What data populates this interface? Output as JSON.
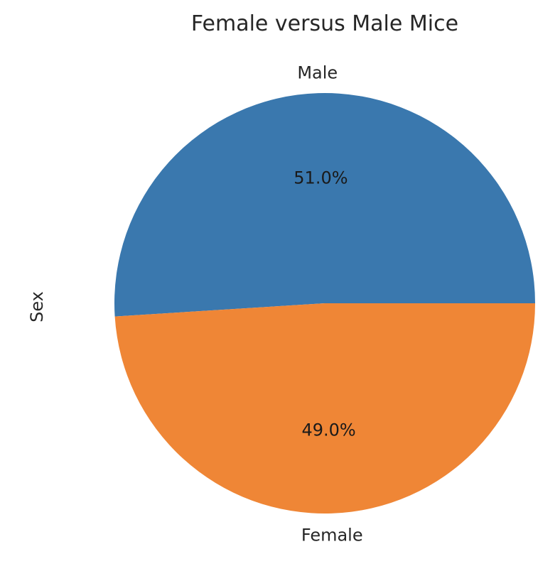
{
  "chart_data": {
    "type": "pie",
    "title": "Female versus Male Mice",
    "ylabel": "Sex",
    "categories": [
      "Male",
      "Female"
    ],
    "values": [
      51.0,
      49.0
    ],
    "percent_labels": [
      "51.0%",
      "49.0%"
    ],
    "colors": [
      "#3a78ae",
      "#ef8636"
    ],
    "legend": "none"
  }
}
